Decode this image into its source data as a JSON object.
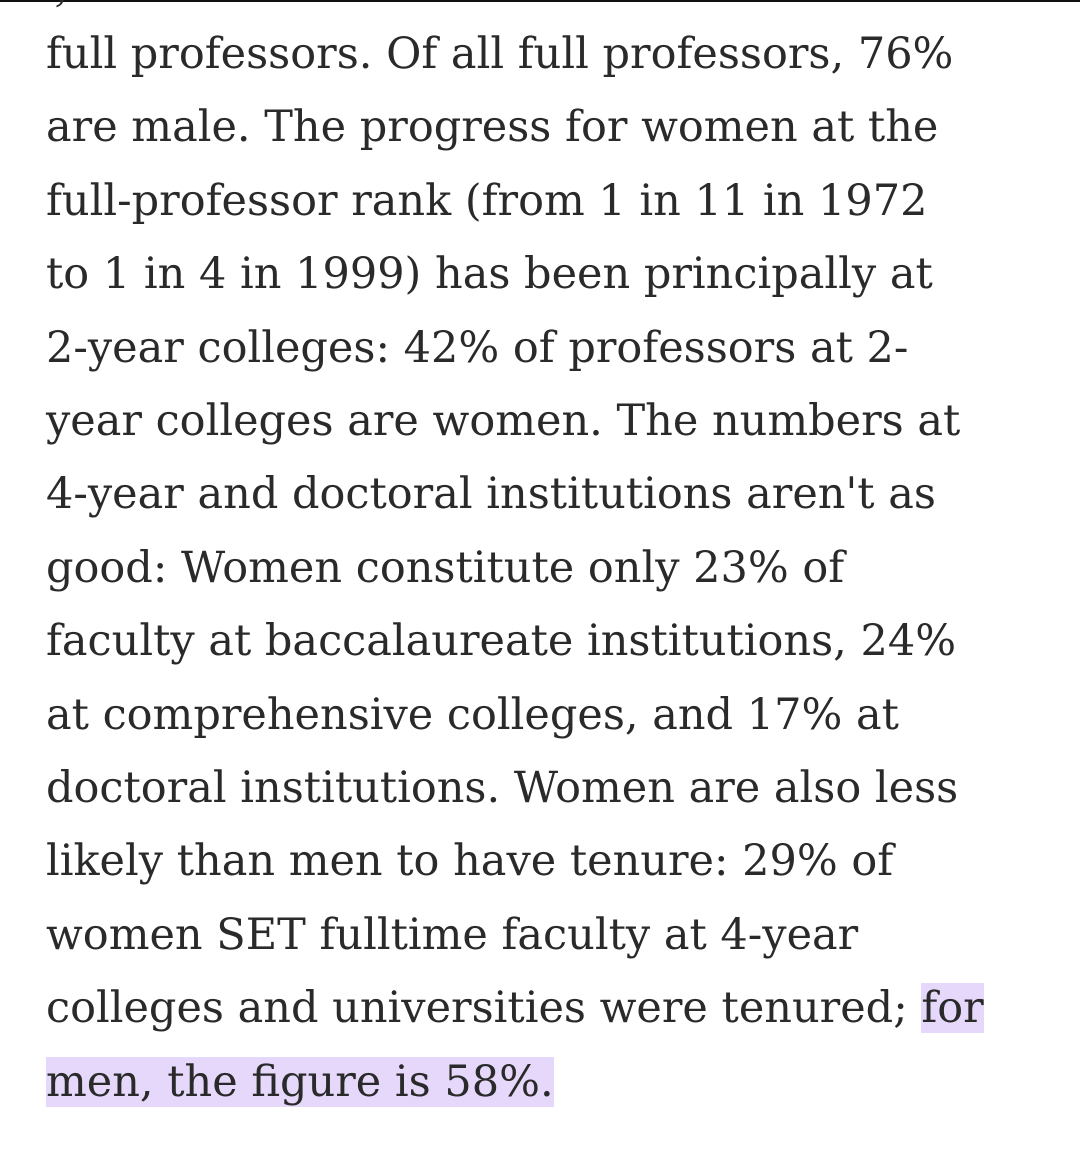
{
  "article": {
    "partial_top": "',",
    "lines": [
      "full professors. Of all full professors, 76%",
      "are male. The progress for women at the",
      "full-professor rank (from 1 in 11 in 1972",
      "to 1 in 4 in 1999) has been principally at",
      "2-year colleges: 42% of professors at 2-",
      "year colleges are women. The numbers at",
      "4-year and doctoral institutions aren't as",
      "good: Women constitute only 23% of",
      "faculty at baccalaureate institutions, 24%",
      "at comprehensive colleges, and 17% at",
      "doctoral institutions. Women are also less",
      "likely than men to have tenure: 29% of",
      "women SET fulltime faculty at 4-year"
    ],
    "line14_plain": "colleges and universities were tenured; ",
    "line14_highlight": "for",
    "line15_highlight": "men, the figure is 58%.",
    "highlight_color": "#e6d8fb"
  }
}
